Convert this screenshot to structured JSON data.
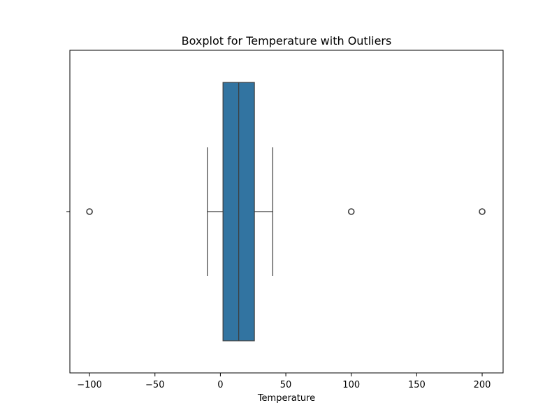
{
  "chart_data": {
    "type": "boxplot",
    "title": "Boxplot for Temperature with Outliers",
    "xlabel": "Temperature",
    "ylabel": "",
    "xlim": [
      -115,
      216
    ],
    "xticks": [
      {
        "value": -100,
        "label": "−100"
      },
      {
        "value": -50,
        "label": "−50"
      },
      {
        "value": 0,
        "label": "0"
      },
      {
        "value": 50,
        "label": "50"
      },
      {
        "value": 100,
        "label": "100"
      },
      {
        "value": 150,
        "label": "150"
      },
      {
        "value": 200,
        "label": "200"
      }
    ],
    "grid": false,
    "box": {
      "whisker_low": -10,
      "q1": 2,
      "median": 14,
      "q3": 26,
      "whisker_high": 40
    },
    "outliers": [
      -100,
      100,
      200
    ],
    "box_color": "#3274a1",
    "line_color": "#3d3d3d"
  }
}
